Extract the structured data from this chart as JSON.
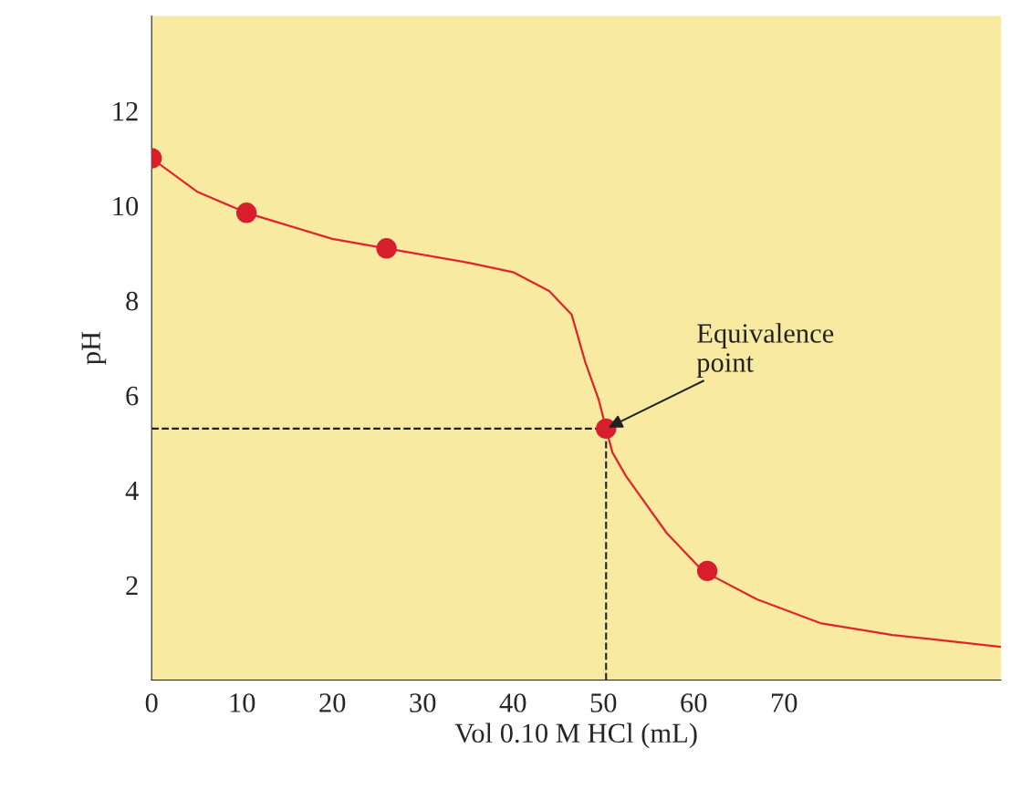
{
  "chart_data": {
    "type": "line",
    "xlabel": "Vol 0.10 M HCl (mL)",
    "ylabel": "pH",
    "xlim": [
      0,
      94
    ],
    "ylim": [
      0,
      14
    ],
    "xticks": [
      0,
      10,
      20,
      30,
      40,
      50,
      60,
      70
    ],
    "yticks": [
      2,
      4,
      6,
      8,
      10,
      12
    ],
    "grid": false,
    "legend": false,
    "series": [
      {
        "color": "#e0242c",
        "marker": "none",
        "x": [
          0,
          5,
          10.5,
          20,
          26,
          35,
          40,
          44,
          46.5,
          48,
          49.5,
          50.3,
          51,
          52.5,
          54,
          57,
          61,
          67,
          74,
          82,
          94
        ],
        "values": [
          11.0,
          10.3,
          9.85,
          9.3,
          9.1,
          8.8,
          8.6,
          8.2,
          7.7,
          6.7,
          5.9,
          5.3,
          4.8,
          4.3,
          3.9,
          3.1,
          2.3,
          1.7,
          1.2,
          0.95,
          0.7
        ]
      },
      {
        "type": "scatter",
        "color": "#d81e2c",
        "marker": "circle",
        "x": [
          0,
          10.5,
          26,
          50.3,
          61.5
        ],
        "values": [
          11.0,
          9.85,
          9.1,
          5.3,
          2.3
        ]
      }
    ],
    "ref_lines": [
      {
        "axis": "y",
        "value": 5.3,
        "line_style": "dashed",
        "color": "#222222"
      },
      {
        "axis": "x",
        "value": 50.3,
        "line_style": "dashed",
        "color": "#222222"
      }
    ],
    "annotations": [
      {
        "text": "Equivalence\npoint",
        "x": 50.3,
        "y": 5.3
      }
    ]
  }
}
